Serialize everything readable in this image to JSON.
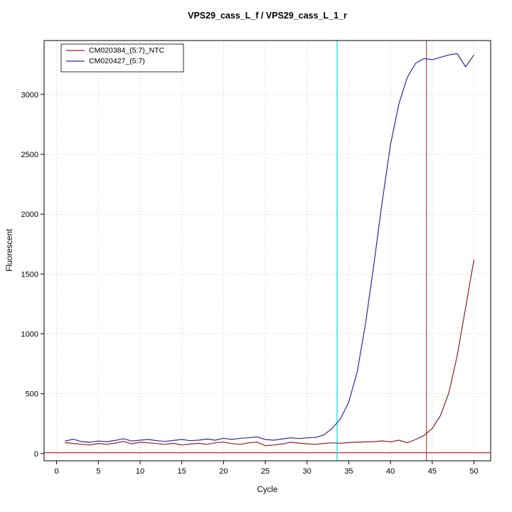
{
  "chart_data": {
    "type": "line",
    "title": "VPS29_cass_L_f / VPS29_cass_L_1_r",
    "xlabel": "Cycle",
    "ylabel": "Fluorescent",
    "xlim": [
      -1.5,
      52
    ],
    "ylim": [
      -60,
      3450
    ],
    "xticks": [
      0,
      5,
      10,
      15,
      20,
      25,
      30,
      35,
      40,
      45,
      50
    ],
    "yticks": [
      0,
      500,
      1000,
      1500,
      2000,
      2500,
      3000
    ],
    "grid": true,
    "legend_position": "top-left",
    "x": [
      1,
      2,
      3,
      4,
      5,
      6,
      7,
      8,
      9,
      10,
      11,
      12,
      13,
      14,
      15,
      16,
      17,
      18,
      19,
      20,
      21,
      22,
      23,
      24,
      25,
      26,
      27,
      28,
      29,
      30,
      31,
      32,
      33,
      34,
      35,
      36,
      37,
      38,
      39,
      40,
      41,
      42,
      43,
      44,
      45,
      46,
      47,
      48,
      49,
      50
    ],
    "series": [
      {
        "name": "CM020384_(5:7)_NTC",
        "color": "#8b2323",
        "values": [
          92,
          85,
          78,
          72,
          85,
          78,
          88,
          102,
          82,
          95,
          90,
          84,
          78,
          86,
          72,
          80,
          86,
          78,
          90,
          96,
          84,
          78,
          90,
          96,
          66,
          72,
          80,
          95,
          88,
          82,
          78,
          85,
          90,
          86,
          92,
          95,
          98,
          100,
          106,
          98,
          112,
          90,
          118,
          150,
          210,
          320,
          510,
          820,
          1220,
          1620
        ]
      },
      {
        "name": "CM020427_(5:7)",
        "color": "#2b2b99",
        "values": [
          105,
          120,
          100,
          95,
          105,
          100,
          110,
          125,
          105,
          112,
          118,
          108,
          102,
          110,
          118,
          108,
          112,
          122,
          112,
          128,
          118,
          128,
          132,
          140,
          118,
          112,
          122,
          132,
          126,
          132,
          135,
          155,
          210,
          290,
          430,
          680,
          1080,
          1580,
          2100,
          2580,
          2920,
          3140,
          3260,
          3300,
          3290,
          3310,
          3330,
          3340,
          3230,
          3330
        ]
      }
    ],
    "threshold_line": {
      "y": 8,
      "color": "#cc2222"
    },
    "ct_lines": [
      {
        "x": 33.6,
        "color": "#00e0e0"
      },
      {
        "x": 44.3,
        "color": "#b24d4d"
      }
    ]
  }
}
